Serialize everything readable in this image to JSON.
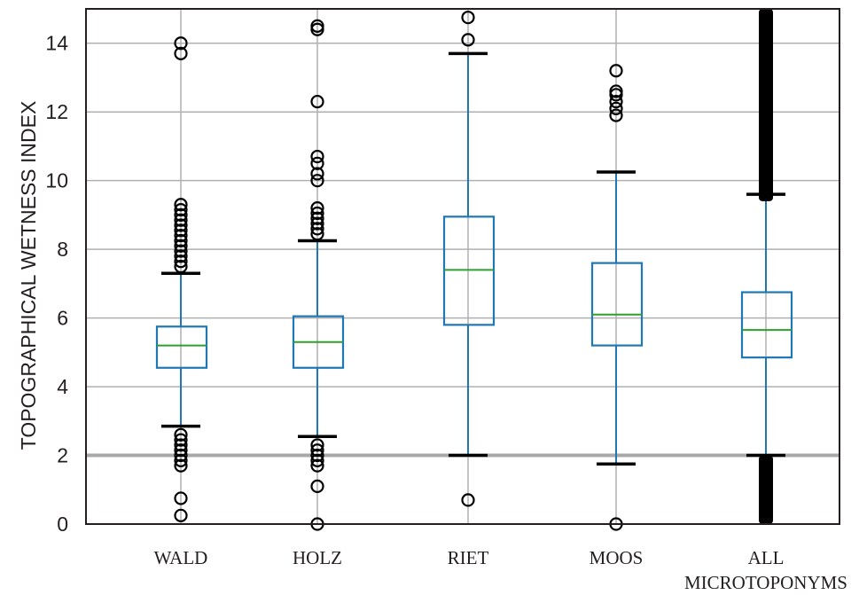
{
  "chart_data": {
    "type": "box",
    "ylabel": "TOPOGRAPHICAL WETNESS INDEX",
    "ylim": [
      0,
      15
    ],
    "yticks": [
      "0",
      "2",
      "4",
      "6",
      "8",
      "10",
      "12",
      "14"
    ],
    "grid": true,
    "categories": [
      {
        "lines": [
          "WALD"
        ]
      },
      {
        "lines": [
          "HOLZ"
        ]
      },
      {
        "lines": [
          "RIET"
        ]
      },
      {
        "lines": [
          "MOOS"
        ]
      },
      {
        "lines": [
          "ALL",
          "MICROTOPONYMS"
        ]
      }
    ],
    "boxes": [
      {
        "whisker_low": 2.85,
        "q1": 4.55,
        "median": 5.2,
        "q3": 5.75,
        "whisker_high": 7.3,
        "outliers_low": [
          2.6,
          2.45,
          2.3,
          2.15,
          2.0,
          1.85,
          1.7,
          0.75,
          0.25
        ],
        "outliers_high": [
          7.5,
          7.65,
          7.8,
          7.95,
          8.1,
          8.25,
          8.4,
          8.55,
          8.7,
          8.85,
          9.0,
          9.15,
          9.3,
          13.7,
          14.0
        ]
      },
      {
        "whisker_low": 2.55,
        "q1": 4.55,
        "median": 5.3,
        "q3": 6.05,
        "whisker_high": 8.25,
        "outliers_low": [
          2.3,
          2.15,
          2.0,
          1.85,
          1.7,
          1.1,
          0.0
        ],
        "outliers_high": [
          8.45,
          8.6,
          8.75,
          8.9,
          9.05,
          9.2,
          10.0,
          10.2,
          10.5,
          10.7,
          12.3,
          14.4,
          14.5
        ]
      },
      {
        "whisker_low": 2.0,
        "q1": 5.8,
        "median": 7.4,
        "q3": 8.95,
        "whisker_high": 13.7,
        "outliers_low": [
          0.7
        ],
        "outliers_high": [
          14.1,
          14.75
        ]
      },
      {
        "whisker_low": 1.75,
        "q1": 5.2,
        "median": 6.1,
        "q3": 7.6,
        "whisker_high": 10.25,
        "outliers_low": [
          0.0
        ],
        "outliers_high": [
          11.9,
          12.1,
          12.3,
          12.5,
          12.6,
          13.2
        ]
      },
      {
        "whisker_low": 2.0,
        "q1": 4.85,
        "median": 5.65,
        "q3": 6.75,
        "whisker_high": 9.6,
        "outliers_low_band": [
          0.0,
          2.0
        ],
        "outliers_high_band": [
          9.4,
          15.0
        ]
      }
    ],
    "colors": {
      "box": "#1f77b4",
      "median": "#2ca02c",
      "outlier": "#000000",
      "grid": "#b0b0b0",
      "axis": "#231f20"
    }
  }
}
